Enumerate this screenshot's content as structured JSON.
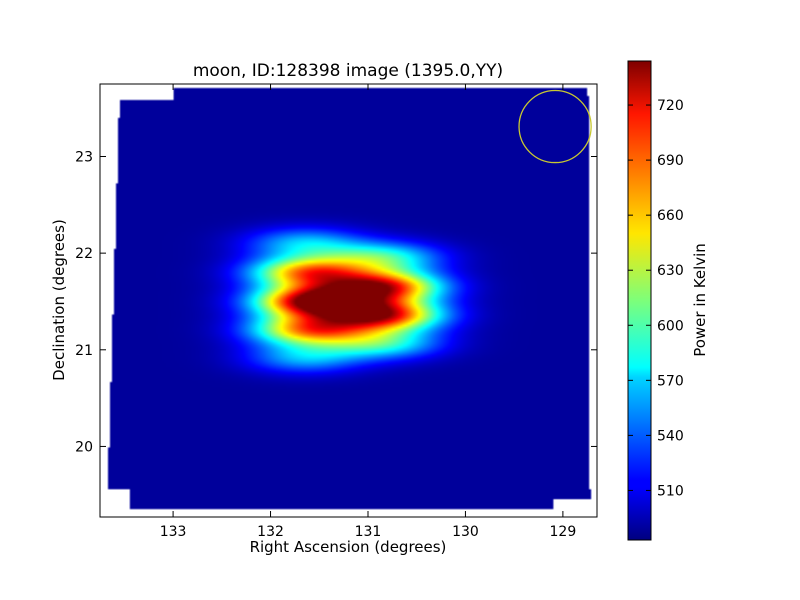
{
  "chart_data": {
    "type": "heatmap",
    "title": "moon, ID:128398 image (1395.0,YY)",
    "xlabel": "Right Ascension (degrees)",
    "ylabel": "Declination (degrees)",
    "colorbar_label": "Power in Kelvin",
    "colormap": "jet",
    "xlim": [
      133.75,
      128.65
    ],
    "ylim": [
      19.27,
      23.75
    ],
    "x_ticks": [
      133,
      132,
      131,
      130,
      129
    ],
    "y_ticks": [
      20,
      21,
      22,
      23
    ],
    "colorbar_range": [
      483,
      744
    ],
    "colorbar_ticks": [
      510,
      540,
      570,
      600,
      630,
      660,
      690,
      720
    ],
    "background_level": 490,
    "blobs": [
      {
        "ra": 131.55,
        "dec": 21.5,
        "peak": 736
      },
      {
        "ra": 131.6,
        "dec": 21.8,
        "peak": 670
      },
      {
        "ra": 131.6,
        "dec": 21.21,
        "peak": 665
      },
      {
        "ra": 130.85,
        "dec": 21.65,
        "peak": 700
      },
      {
        "ra": 130.85,
        "dec": 21.36,
        "peak": 702
      },
      {
        "ra": 130.85,
        "dec": 21.95,
        "peak": 590
      },
      {
        "ra": 130.85,
        "dec": 21.07,
        "peak": 585
      },
      {
        "ra": 131.65,
        "dec": 22.1,
        "peak": 565
      },
      {
        "ra": 131.65,
        "dec": 20.92,
        "peak": 560
      }
    ],
    "beam_circle": {
      "ra": 129.08,
      "dec": 23.31,
      "radius_deg": 0.37,
      "color": "#c8c832"
    }
  }
}
